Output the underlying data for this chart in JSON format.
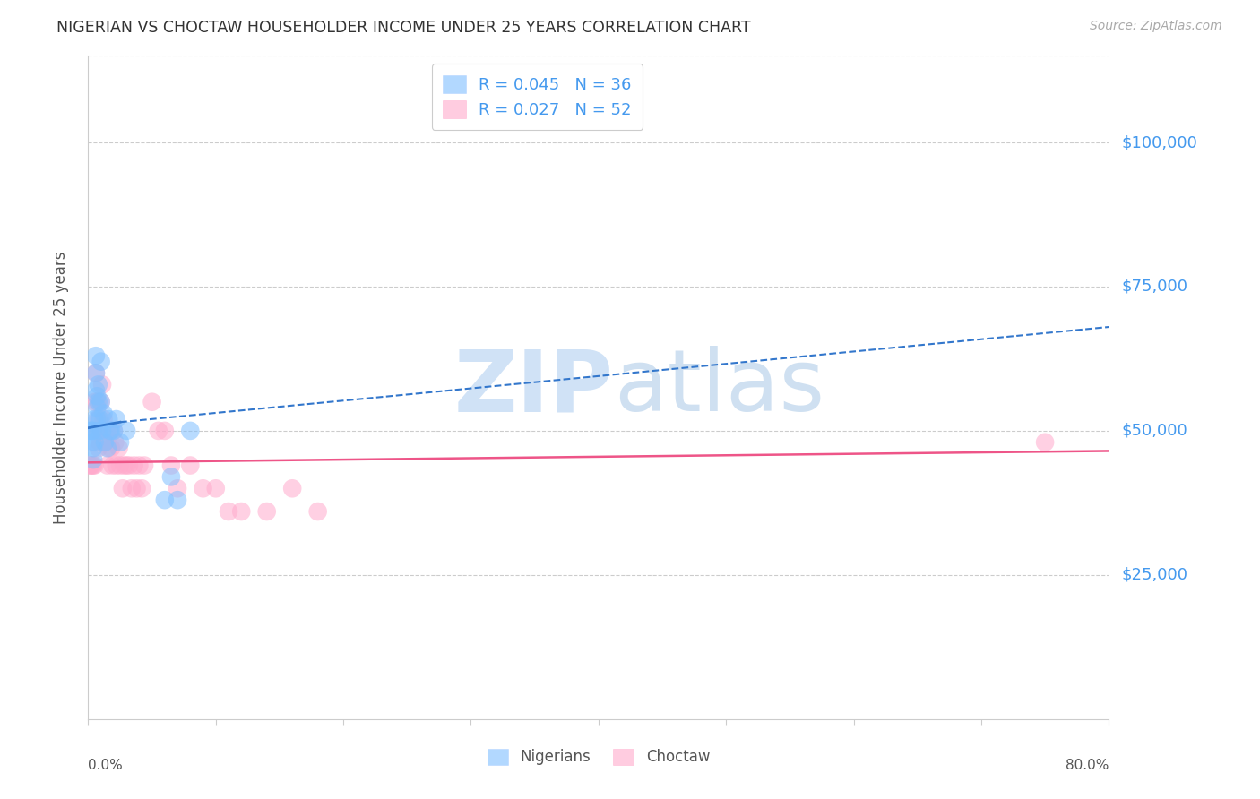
{
  "title": "NIGERIAN VS CHOCTAW HOUSEHOLDER INCOME UNDER 25 YEARS CORRELATION CHART",
  "source": "Source: ZipAtlas.com",
  "ylabel": "Householder Income Under 25 years",
  "xlim": [
    0.0,
    0.8
  ],
  "ylim": [
    0,
    115000
  ],
  "ytick_labels": [
    "$100,000",
    "$75,000",
    "$50,000",
    "$25,000"
  ],
  "ytick_values": [
    100000,
    75000,
    50000,
    25000
  ],
  "grid_color": "#cccccc",
  "background_color": "#ffffff",
  "blue_color": "#7fbfff",
  "pink_color": "#ffaacc",
  "right_label_color": "#4499ee",
  "nigerians_R": 0.045,
  "nigerians_N": 36,
  "choctaw_R": 0.027,
  "choctaw_N": 52,
  "nigerians_x": [
    0.001,
    0.002,
    0.003,
    0.003,
    0.004,
    0.004,
    0.004,
    0.005,
    0.005,
    0.006,
    0.006,
    0.006,
    0.007,
    0.007,
    0.007,
    0.008,
    0.008,
    0.009,
    0.009,
    0.01,
    0.01,
    0.011,
    0.012,
    0.013,
    0.015,
    0.016,
    0.017,
    0.018,
    0.02,
    0.022,
    0.025,
    0.03,
    0.06,
    0.065,
    0.07,
    0.08
  ],
  "nigerians_y": [
    50000,
    50000,
    50000,
    48000,
    50000,
    47000,
    45000,
    52000,
    48000,
    63000,
    60000,
    57000,
    52000,
    56000,
    54000,
    58000,
    55000,
    52000,
    50000,
    55000,
    62000,
    50000,
    53000,
    48000,
    47000,
    52000,
    50000,
    50000,
    50000,
    52000,
    48000,
    50000,
    38000,
    42000,
    38000,
    50000
  ],
  "choctaw_x": [
    0.001,
    0.002,
    0.003,
    0.004,
    0.005,
    0.005,
    0.006,
    0.007,
    0.007,
    0.008,
    0.008,
    0.009,
    0.01,
    0.01,
    0.011,
    0.012,
    0.013,
    0.014,
    0.015,
    0.016,
    0.017,
    0.018,
    0.019,
    0.02,
    0.021,
    0.022,
    0.024,
    0.025,
    0.027,
    0.028,
    0.03,
    0.032,
    0.034,
    0.036,
    0.038,
    0.04,
    0.042,
    0.044,
    0.05,
    0.055,
    0.06,
    0.065,
    0.07,
    0.08,
    0.09,
    0.1,
    0.11,
    0.12,
    0.14,
    0.16,
    0.18,
    0.75
  ],
  "choctaw_y": [
    44000,
    44000,
    44000,
    44000,
    44000,
    55000,
    60000,
    50000,
    55000,
    47000,
    52000,
    48000,
    55000,
    50000,
    58000,
    52000,
    48000,
    50000,
    44000,
    47000,
    50000,
    47000,
    44000,
    50000,
    48000,
    44000,
    47000,
    44000,
    40000,
    44000,
    44000,
    44000,
    40000,
    44000,
    40000,
    44000,
    40000,
    44000,
    55000,
    50000,
    50000,
    44000,
    40000,
    44000,
    40000,
    40000,
    36000,
    36000,
    36000,
    40000,
    36000,
    48000
  ],
  "nigerians_trend_x0": 0.0,
  "nigerians_trend_y0": 50500,
  "nigerians_trend_x1": 0.025,
  "nigerians_trend_y1": 51500,
  "nigerians_trend_dash_x0": 0.025,
  "nigerians_trend_dash_y0": 51500,
  "nigerians_trend_dash_x1": 0.8,
  "nigerians_trend_dash_y1": 68000,
  "choctaw_trend_x0": 0.0,
  "choctaw_trend_y0": 44500,
  "choctaw_trend_x1": 0.8,
  "choctaw_trend_y1": 46500,
  "blue_trend_color": "#3377cc",
  "pink_trend_color": "#ee5588",
  "watermark_zip_color": "#c8ddf5",
  "watermark_atlas_color": "#b0cce8"
}
